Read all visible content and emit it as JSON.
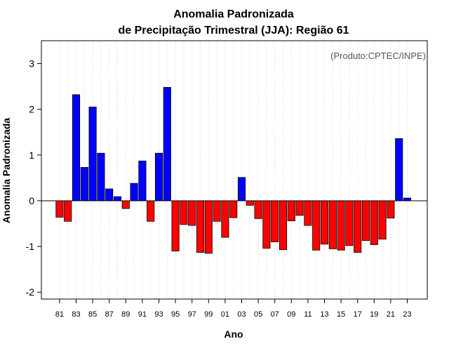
{
  "chart_data": {
    "type": "bar",
    "title": [
      "Anomalia Padronizada",
      "de Precipitação Trimestral (JJA): Região 61"
    ],
    "xlabel": "Ano",
    "ylabel": "Anomalia Padronizada",
    "annotation": "(Produto:CPTEC/INPE)",
    "ylim": [
      -2.15,
      3.5
    ],
    "yticks": [
      -2,
      -1,
      0,
      1,
      2,
      3
    ],
    "xtick_labels": [
      "81",
      "83",
      "85",
      "87",
      "89",
      "91",
      "93",
      "95",
      "97",
      "99",
      "01",
      "03",
      "05",
      "07",
      "09",
      "11",
      "13",
      "15",
      "17",
      "19",
      "21",
      "23"
    ],
    "categories": [
      "81",
      "82",
      "83",
      "84",
      "85",
      "86",
      "87",
      "88",
      "89",
      "90",
      "91",
      "92",
      "93",
      "94",
      "95",
      "96",
      "97",
      "98",
      "99",
      "00",
      "01",
      "02",
      "03",
      "04",
      "05",
      "06",
      "07",
      "08",
      "09",
      "10",
      "11",
      "12",
      "13",
      "14",
      "15",
      "16",
      "17",
      "18",
      "19",
      "20",
      "21",
      "22",
      "23"
    ],
    "values": [
      -0.36,
      -0.45,
      2.32,
      0.73,
      2.05,
      1.04,
      0.26,
      0.09,
      -0.17,
      0.38,
      0.87,
      -0.45,
      1.04,
      2.48,
      -1.1,
      -0.52,
      -0.54,
      -1.13,
      -1.15,
      -0.45,
      -0.8,
      -0.37,
      0.51,
      -0.1,
      -0.39,
      -1.04,
      -0.9,
      -1.07,
      -0.44,
      -0.32,
      -0.54,
      -1.08,
      -0.95,
      -1.05,
      -1.08,
      -0.98,
      -1.13,
      -0.87,
      -0.96,
      -0.84,
      -0.38,
      1.36,
      0.06
    ],
    "colors": {
      "positive": "#0000ff",
      "negative": "#ff0000",
      "zero_line": "#000000",
      "grid": "#cccccc"
    },
    "grid": "vertical-dotted"
  }
}
